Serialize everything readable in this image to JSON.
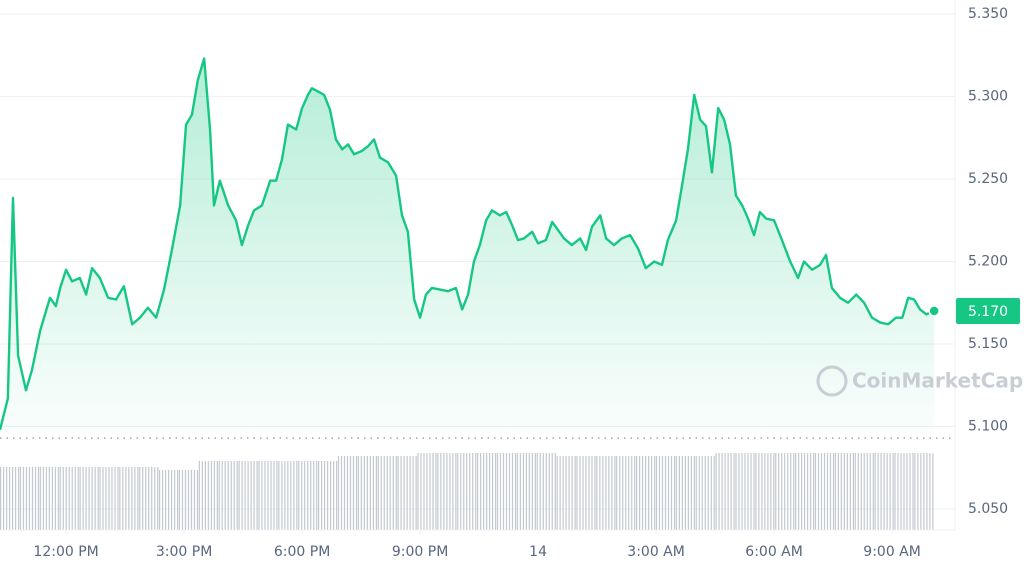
{
  "chart_data": {
    "type": "line",
    "color": "#16c784",
    "grid": true,
    "xlim": [
      10.32,
      34.6
    ],
    "ylim": [
      5.0373,
      5.3585
    ],
    "xticks": [
      {
        "value": 12,
        "label": "12:00 PM"
      },
      {
        "value": 15,
        "label": "3:00 PM"
      },
      {
        "value": 18,
        "label": "6:00 PM"
      },
      {
        "value": 21,
        "label": "9:00 PM"
      },
      {
        "value": 24,
        "label": "14"
      },
      {
        "value": 27,
        "label": "3:00 AM"
      },
      {
        "value": 30,
        "label": "6:00 AM"
      },
      {
        "value": 33,
        "label": "9:00 AM"
      }
    ],
    "yticks": [
      {
        "value": 5.35,
        "label": "5.350"
      },
      {
        "value": 5.3,
        "label": "5.300"
      },
      {
        "value": 5.25,
        "label": "5.250"
      },
      {
        "value": 5.2,
        "label": "5.200"
      },
      {
        "value": 5.15,
        "label": "5.150"
      },
      {
        "value": 5.1,
        "label": "5.100"
      },
      {
        "value": 5.05,
        "label": "5.050"
      }
    ],
    "x": [
      10.32,
      10.52,
      10.65,
      10.78,
      10.98,
      11.13,
      11.34,
      11.44,
      11.59,
      11.74,
      11.85,
      12.0,
      12.15,
      12.35,
      12.51,
      12.66,
      12.86,
      13.07,
      13.27,
      13.47,
      13.68,
      13.88,
      14.08,
      14.29,
      14.49,
      14.69,
      14.9,
      15.05,
      15.2,
      15.35,
      15.51,
      15.66,
      15.76,
      15.91,
      16.12,
      16.32,
      16.47,
      16.63,
      16.78,
      16.98,
      17.19,
      17.34,
      17.49,
      17.64,
      17.85,
      18.0,
      18.15,
      18.25,
      18.41,
      18.56,
      18.71,
      18.86,
      19.02,
      19.17,
      19.32,
      19.52,
      19.68,
      19.83,
      19.98,
      20.19,
      20.39,
      20.54,
      20.69,
      20.85,
      21.0,
      21.15,
      21.3,
      21.51,
      21.71,
      21.91,
      22.07,
      22.22,
      22.37,
      22.52,
      22.68,
      22.83,
      23.03,
      23.19,
      23.34,
      23.49,
      23.64,
      23.85,
      24.0,
      24.2,
      24.36,
      24.51,
      24.66,
      24.86,
      25.07,
      25.22,
      25.37,
      25.58,
      25.73,
      25.93,
      26.13,
      26.34,
      26.54,
      26.74,
      26.95,
      27.15,
      27.3,
      27.51,
      27.66,
      27.81,
      27.97,
      28.12,
      28.27,
      28.42,
      28.58,
      28.73,
      28.88,
      29.03,
      29.19,
      29.34,
      29.49,
      29.64,
      29.8,
      30.0,
      30.2,
      30.41,
      30.61,
      30.76,
      30.97,
      31.17,
      31.32,
      31.47,
      31.68,
      31.88,
      32.09,
      32.29,
      32.49,
      32.7,
      32.9,
      33.1,
      33.26,
      33.41,
      33.56,
      33.71,
      33.87,
      34.07
    ],
    "values": [
      5.098,
      5.117,
      5.2385,
      5.143,
      5.122,
      5.134,
      5.158,
      5.166,
      5.178,
      5.173,
      5.184,
      5.195,
      5.188,
      5.19,
      5.18,
      5.196,
      5.19,
      5.178,
      5.177,
      5.185,
      5.162,
      5.166,
      5.172,
      5.166,
      5.183,
      5.207,
      5.234,
      5.283,
      5.289,
      5.31,
      5.323,
      5.28,
      5.234,
      5.249,
      5.234,
      5.225,
      5.21,
      5.222,
      5.231,
      5.234,
      5.249,
      5.249,
      5.262,
      5.283,
      5.28,
      5.293,
      5.301,
      5.305,
      5.303,
      5.301,
      5.292,
      5.274,
      5.268,
      5.271,
      5.265,
      5.267,
      5.27,
      5.274,
      5.263,
      5.26,
      5.252,
      5.228,
      5.218,
      5.177,
      5.166,
      5.18,
      5.184,
      5.183,
      5.182,
      5.184,
      5.171,
      5.18,
      5.2,
      5.21,
      5.225,
      5.231,
      5.228,
      5.23,
      5.222,
      5.213,
      5.214,
      5.218,
      5.211,
      5.213,
      5.224,
      5.219,
      5.214,
      5.21,
      5.214,
      5.207,
      5.221,
      5.228,
      5.214,
      5.21,
      5.214,
      5.216,
      5.208,
      5.196,
      5.2,
      5.198,
      5.213,
      5.225,
      5.246,
      5.268,
      5.301,
      5.286,
      5.282,
      5.254,
      5.293,
      5.286,
      5.271,
      5.24,
      5.234,
      5.226,
      5.216,
      5.23,
      5.226,
      5.225,
      5.213,
      5.2,
      5.19,
      5.2,
      5.195,
      5.198,
      5.204,
      5.184,
      5.178,
      5.175,
      5.18,
      5.175,
      5.166,
      5.163,
      5.162,
      5.166,
      5.166,
      5.178,
      5.177,
      5.171,
      5.168,
      5.17
    ],
    "reference_line": 5.093,
    "current_price": {
      "value": 5.17,
      "label": "5.170",
      "color": "#16c784"
    },
    "watermark": "CoinMarketCap",
    "volume": {
      "color": "#c3c8d1",
      "values": [
        63,
        63,
        63,
        63,
        63,
        63,
        63,
        63,
        60,
        60,
        69,
        69,
        69,
        69,
        69,
        69,
        69,
        74,
        74,
        74,
        74,
        77,
        77,
        77,
        77,
        77,
        77,
        77,
        74,
        74,
        74,
        74,
        74,
        74,
        74,
        74,
        77,
        77,
        77,
        77,
        77,
        77,
        77,
        77,
        77,
        77,
        77
      ]
    }
  }
}
